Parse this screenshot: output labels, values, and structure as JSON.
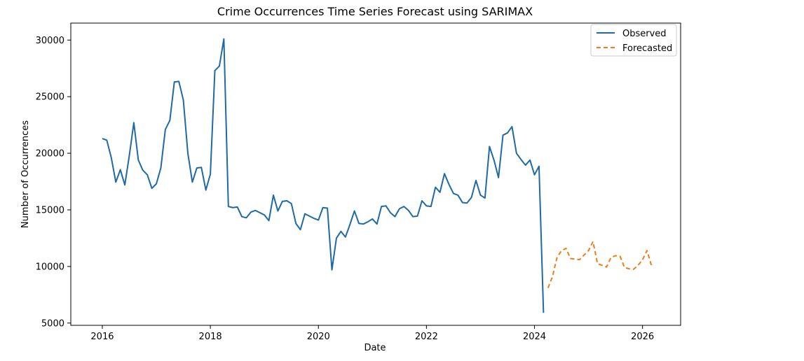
{
  "chart_data": {
    "type": "line",
    "title": "Crime Occurrences Time Series Forecast using SARIMAX",
    "xlabel": "Date",
    "ylabel": "Number of Occurrences",
    "xlim": [
      "2015-06-01",
      "2026-09-15"
    ],
    "ylim": [
      4800,
      31500
    ],
    "x_ticks": [
      "2016",
      "2018",
      "2020",
      "2022",
      "2024",
      "2026"
    ],
    "y_ticks": [
      "5000",
      "10000",
      "15000",
      "20000",
      "25000",
      "30000"
    ],
    "grid": false,
    "legend": {
      "position": "top-right"
    },
    "series": [
      {
        "name": "Observed",
        "color": "#1f6aa5",
        "style": "solid",
        "start": "2016-01",
        "frequency": "monthly",
        "values": [
          21300,
          21150,
          19600,
          17450,
          18550,
          17200,
          19800,
          22700,
          19400,
          18500,
          18100,
          16900,
          17300,
          18700,
          22100,
          22900,
          26300,
          26350,
          24700,
          20000,
          17450,
          18700,
          18750,
          16750,
          18150,
          27300,
          27700,
          30100,
          15300,
          15200,
          15250,
          14400,
          14300,
          14800,
          14950,
          14750,
          14550,
          14050,
          16300,
          14900,
          15750,
          15800,
          15550,
          13800,
          13250,
          14650,
          14450,
          14250,
          14100,
          15200,
          15150,
          9700,
          12500,
          13100,
          12600,
          13700,
          14900,
          13800,
          13750,
          13950,
          14200,
          13750,
          15300,
          15350,
          14750,
          14400,
          15100,
          15300,
          14950,
          14400,
          14450,
          15800,
          15350,
          15300,
          17000,
          16550,
          18200,
          17250,
          16450,
          16300,
          15650,
          15600,
          16100,
          17600,
          16300,
          16050,
          20600,
          19400,
          17850,
          21600,
          21800,
          22350,
          20000,
          19450,
          18950,
          19400,
          18100,
          18850,
          5900
        ]
      },
      {
        "name": "Forecasted",
        "color": "#ee7d1a",
        "style": "dashed",
        "start": "2024-04",
        "frequency": "monthly",
        "values": [
          8100,
          9100,
          10800,
          11400,
          11600,
          10700,
          10650,
          10600,
          11000,
          11400,
          12200,
          10250,
          10100,
          9950,
          10800,
          10950,
          10900,
          9900,
          9800,
          9750,
          10100,
          10600,
          11400,
          10050
        ]
      }
    ]
  }
}
